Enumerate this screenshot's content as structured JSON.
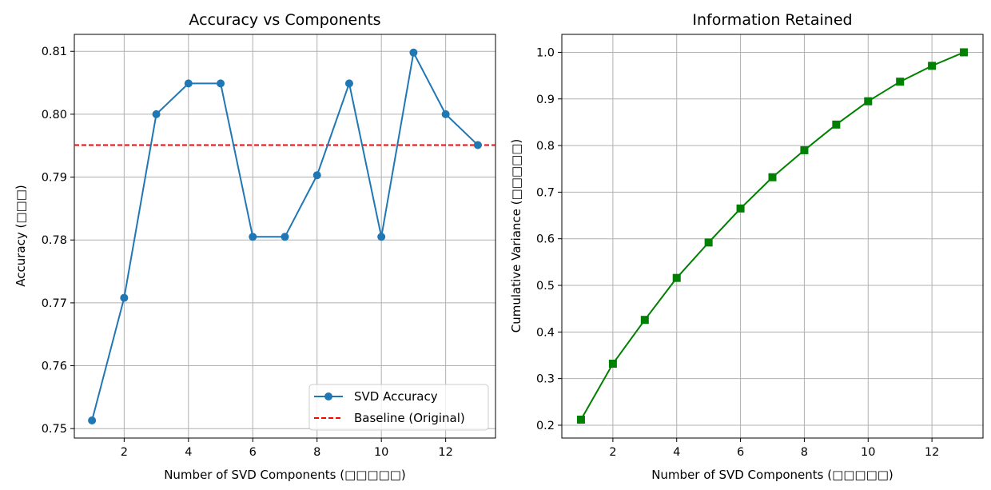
{
  "chart_data": [
    {
      "type": "line",
      "title": "Accuracy vs Components",
      "xlabel": "Number of SVD Components (□□□□□)",
      "ylabel": "Accuracy (□□□)",
      "xlim": [
        0.45,
        13.55
      ],
      "ylim": [
        0.7485,
        0.8127
      ],
      "xticks": [
        2,
        4,
        6,
        8,
        10,
        12
      ],
      "yticks": [
        0.75,
        0.76,
        0.77,
        0.78,
        0.79,
        0.8,
        0.81
      ],
      "ytick_labels": [
        "0.75",
        "0.76",
        "0.77",
        "0.78",
        "0.79",
        "0.80",
        "0.81"
      ],
      "grid": true,
      "legend": "lower-right",
      "series": [
        {
          "name": "SVD Accuracy",
          "color": "#1f77b4",
          "marker": "circle",
          "x": [
            1,
            2,
            3,
            4,
            5,
            6,
            7,
            8,
            9,
            10,
            11,
            12,
            13
          ],
          "values": [
            0.7513,
            0.7708,
            0.8,
            0.8049,
            0.8049,
            0.7805,
            0.7805,
            0.7903,
            0.8049,
            0.7805,
            0.8098,
            0.8,
            0.7951
          ]
        }
      ],
      "baseline": {
        "name": "Baseline (Original)",
        "value": 0.7951,
        "color": "#ff0000",
        "style": "dashed"
      }
    },
    {
      "type": "line",
      "title": "Information Retained",
      "xlabel": "Number of SVD Components (□□□□□)",
      "ylabel": "Cumulative Variance (□□□□□)",
      "xlim": [
        0.4,
        13.6
      ],
      "ylim": [
        0.1725,
        1.0385
      ],
      "xticks": [
        2,
        4,
        6,
        8,
        10,
        12
      ],
      "yticks": [
        0.2,
        0.3,
        0.4,
        0.5,
        0.6,
        0.7,
        0.8,
        0.9,
        1.0
      ],
      "ytick_labels": [
        "0.2",
        "0.3",
        "0.4",
        "0.5",
        "0.6",
        "0.7",
        "0.8",
        "0.9",
        "1.0"
      ],
      "grid": true,
      "series": [
        {
          "name": "Cumulative Variance",
          "color": "#008000",
          "marker": "square",
          "x": [
            1,
            2,
            3,
            4,
            5,
            6,
            7,
            8,
            9,
            10,
            11,
            12,
            13
          ],
          "values": [
            0.212,
            0.332,
            0.426,
            0.516,
            0.592,
            0.665,
            0.732,
            0.79,
            0.845,
            0.895,
            0.937,
            0.971,
            1.0
          ]
        }
      ]
    }
  ]
}
